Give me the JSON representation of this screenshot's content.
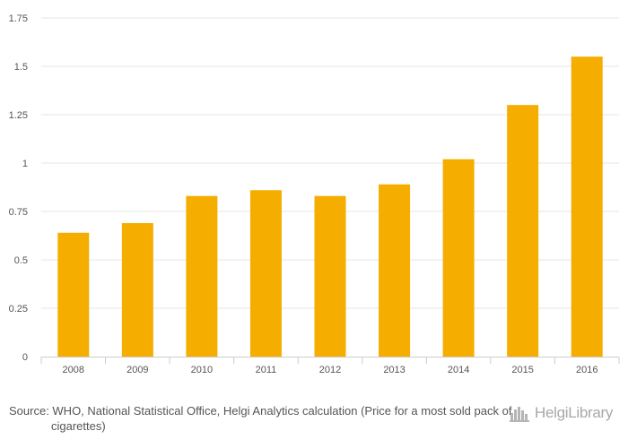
{
  "chart_data": {
    "type": "bar",
    "categories": [
      "2008",
      "2009",
      "2010",
      "2011",
      "2012",
      "2013",
      "2014",
      "2015",
      "2016"
    ],
    "values": [
      0.64,
      0.69,
      0.83,
      0.86,
      0.83,
      0.89,
      1.02,
      1.3,
      1.55
    ],
    "ylim": [
      0,
      1.75
    ],
    "yticks": [
      0,
      0.25,
      0.5,
      0.75,
      1,
      1.25,
      1.5,
      1.75
    ],
    "ytick_labels": [
      "0",
      "0.25",
      "0.5",
      "0.75",
      "1",
      "1.25",
      "1.5",
      "1.75"
    ],
    "bar_color": "#f5ae00",
    "grid": true,
    "legend": "none"
  },
  "footer": {
    "source": "Source: WHO, National Statistical Office, Helgi Analytics calculation (Price for a most sold pack of cigarettes)",
    "logo_text": "HelgiLibrary"
  }
}
